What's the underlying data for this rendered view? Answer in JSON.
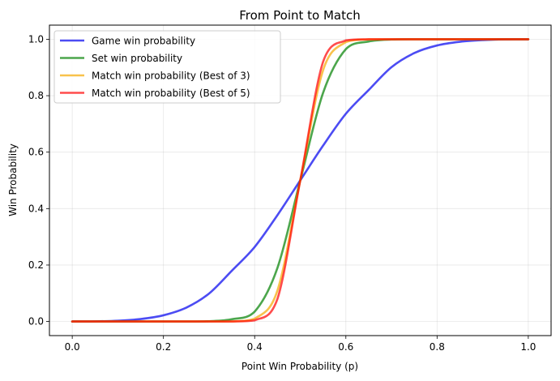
{
  "chart_data": {
    "type": "line",
    "title": "From Point to Match",
    "xlabel": "Point Win Probability (p)",
    "ylabel": "Win Probability",
    "xlim": [
      -0.05,
      1.05
    ],
    "ylim": [
      -0.05,
      1.05
    ],
    "x_ticks": [
      0.0,
      0.2,
      0.4,
      0.6,
      0.8,
      1.0
    ],
    "x_tick_labels": [
      "0.0",
      "0.2",
      "0.4",
      "0.6",
      "0.8",
      "1.0"
    ],
    "y_ticks": [
      0.0,
      0.2,
      0.4,
      0.6,
      0.8,
      1.0
    ],
    "y_tick_labels": [
      "0.0",
      "0.2",
      "0.4",
      "0.6",
      "0.8",
      "1.0"
    ],
    "grid": true,
    "legend_position": "upper-left",
    "x": [
      0.0,
      0.05,
      0.1,
      0.15,
      0.2,
      0.25,
      0.3,
      0.35,
      0.4,
      0.45,
      0.5,
      0.55,
      0.6,
      0.65,
      0.7,
      0.75,
      0.8,
      0.85,
      0.9,
      0.95,
      1.0
    ],
    "series": [
      {
        "name": "Game win probability",
        "color": "#0000ee",
        "opacity": 0.7,
        "values": [
          0.0,
          0.0004,
          0.0027,
          0.0087,
          0.022,
          0.049,
          0.099,
          0.18,
          0.264,
          0.377,
          0.5,
          0.623,
          0.736,
          0.82,
          0.901,
          0.951,
          0.978,
          0.991,
          0.997,
          0.9996,
          1.0
        ]
      },
      {
        "name": "Set win probability",
        "color": "#008000",
        "opacity": 0.7,
        "values": [
          0.0,
          0.0,
          0.0,
          0.0,
          0.0,
          0.0,
          0.001,
          0.008,
          0.035,
          0.19,
          0.5,
          0.81,
          0.965,
          0.992,
          0.999,
          1.0,
          1.0,
          1.0,
          1.0,
          1.0,
          1.0
        ]
      },
      {
        "name": "Match win probability (Best of 3)",
        "color": "#f5a800",
        "opacity": 0.7,
        "values": [
          0.0,
          0.0,
          0.0,
          0.0,
          0.0,
          0.0,
          0.0,
          0.0004,
          0.01,
          0.11,
          0.5,
          0.89,
          0.99,
          0.9996,
          1.0,
          1.0,
          1.0,
          1.0,
          1.0,
          1.0,
          1.0
        ]
      },
      {
        "name": "Match win probability (Best of 5)",
        "color": "#ff0000",
        "opacity": 0.7,
        "values": [
          0.0,
          0.0,
          0.0,
          0.0,
          0.0,
          0.0,
          0.0,
          0.0,
          0.004,
          0.08,
          0.5,
          0.92,
          0.996,
          1.0,
          1.0,
          1.0,
          1.0,
          1.0,
          1.0,
          1.0,
          1.0
        ]
      }
    ]
  }
}
